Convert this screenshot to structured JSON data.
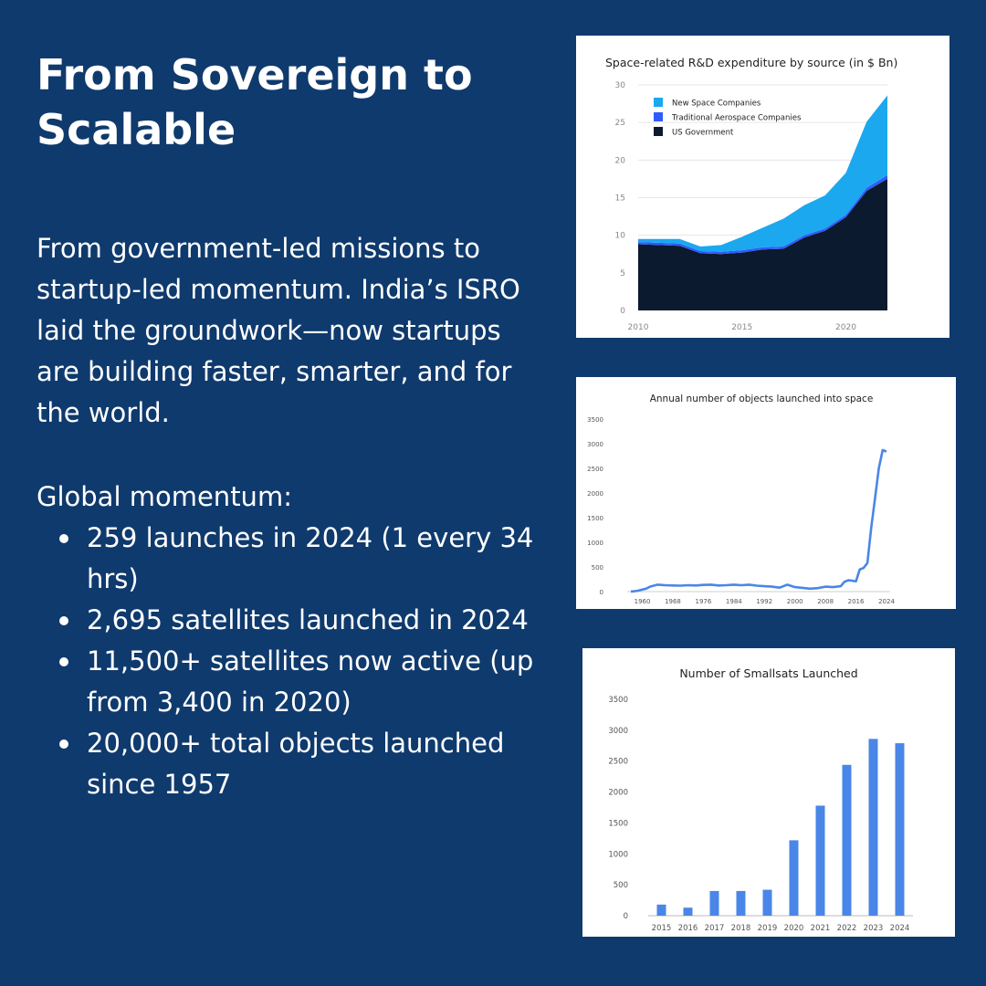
{
  "heading": "From Sovereign to Scalable",
  "intro": "From government-led missions to startup-led momentum. India’s ISRO laid the groundwork—now startups are building faster, smarter, and for the world.",
  "momentum_label": "Global momentum:",
  "bullets": [
    "259 launches in 2024 (1 every 34 hrs)",
    "2,695 satellites launched in 2024",
    "11,500+ satellites now active (up from 3,400 in 2020)",
    "20,000+ total objects launched since 1957"
  ],
  "colors": {
    "background": "#0f3a6d",
    "new_space": "#1ba8ee",
    "traditional": "#2f5bff",
    "us_gov": "#0b1a2e",
    "line": "#4a86e8",
    "bar": "#4a86e8"
  },
  "chart_data": [
    {
      "type": "area",
      "title": "Space-related R&D expenditure by source (in $ Bn)",
      "xlabel": "",
      "ylabel": "",
      "x": [
        2010,
        2011,
        2012,
        2013,
        2014,
        2015,
        2016,
        2017,
        2018,
        2019,
        2020,
        2021,
        2022
      ],
      "x_ticks": [
        "2010",
        "2015",
        "2020"
      ],
      "y_ticks": [
        "0",
        "5",
        "10",
        "15",
        "20",
        "25",
        "30"
      ],
      "ylim": [
        0,
        30
      ],
      "legend_position": "top-left",
      "series": [
        {
          "name": "US Government",
          "values": [
            8.8,
            8.7,
            8.6,
            7.6,
            7.5,
            7.7,
            8.1,
            8.2,
            9.7,
            10.6,
            12.4,
            15.9,
            17.5
          ]
        },
        {
          "name": "Traditional Aerospace Companies",
          "values": [
            0.3,
            0.3,
            0.3,
            0.3,
            0.3,
            0.3,
            0.3,
            0.3,
            0.3,
            0.3,
            0.3,
            0.4,
            0.5
          ]
        },
        {
          "name": "New Space Companies",
          "values": [
            0.4,
            0.5,
            0.6,
            0.6,
            0.9,
            1.8,
            2.6,
            3.7,
            4.0,
            4.4,
            5.6,
            8.8,
            10.6
          ]
        }
      ]
    },
    {
      "type": "line",
      "title": "Annual number of objects launched into space",
      "xlabel": "",
      "ylabel": "",
      "x_ticks": [
        "1960",
        "1968",
        "1976",
        "1984",
        "1992",
        "2000",
        "2008",
        "2016",
        "2024"
      ],
      "y_ticks": [
        "0",
        "500",
        "1000",
        "1500",
        "2000",
        "2500",
        "3000",
        "3500"
      ],
      "xlim": [
        1957,
        2024
      ],
      "ylim": [
        0,
        3500
      ],
      "x": [
        1957,
        1958,
        1959,
        1960,
        1961,
        1962,
        1964,
        1966,
        1968,
        1970,
        1972,
        1974,
        1976,
        1978,
        1980,
        1982,
        1984,
        1986,
        1988,
        1990,
        1992,
        1994,
        1996,
        1998,
        2000,
        2002,
        2004,
        2006,
        2008,
        2010,
        2012,
        2013,
        2014,
        2015,
        2016,
        2017,
        2018,
        2019,
        2020,
        2021,
        2022,
        2023,
        2024
      ],
      "values": [
        2,
        8,
        20,
        40,
        60,
        100,
        140,
        130,
        125,
        120,
        130,
        125,
        135,
        140,
        125,
        130,
        140,
        130,
        140,
        120,
        110,
        100,
        80,
        140,
        90,
        75,
        60,
        70,
        100,
        90,
        110,
        200,
        230,
        220,
        210,
        450,
        480,
        580,
        1300,
        1900,
        2500,
        2870,
        2840
      ]
    },
    {
      "type": "bar",
      "title": "Number of Smallsats Launched",
      "xlabel": "",
      "ylabel": "",
      "categories": [
        "2015",
        "2016",
        "2017",
        "2018",
        "2019",
        "2020",
        "2021",
        "2022",
        "2023",
        "2024"
      ],
      "values": [
        180,
        130,
        400,
        400,
        420,
        1220,
        1780,
        2440,
        2860,
        2790
      ],
      "y_ticks": [
        "0",
        "500",
        "1000",
        "1500",
        "2000",
        "2500",
        "3000",
        "3500"
      ],
      "ylim": [
        0,
        3500
      ]
    }
  ]
}
